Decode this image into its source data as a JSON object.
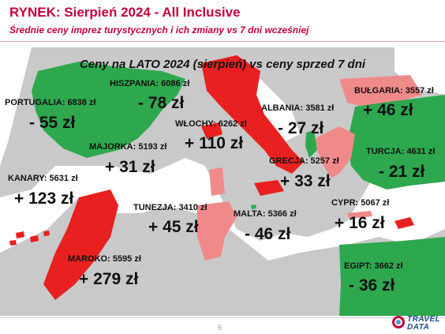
{
  "header": {
    "title": "RYNEK: Sierpień 2024 - All Inclusive",
    "subtitle": "Średnie ceny imprez turystycznych i ich zmiany vs 7 dni wcześniej"
  },
  "map": {
    "title": "Ceny na LATO 2024 (sierpień) vs ceny sprzed 7 dni",
    "colors": {
      "decrease": "#2ea84f",
      "increase": "#e8201f",
      "increase_light": "#f08a8a",
      "sea": "#ffffff",
      "land": "#c9c9c9"
    },
    "destinations": [
      {
        "id": "portugalia",
        "label": "PORTUGALIA: 6838 zł",
        "change": "- 55 zł"
      },
      {
        "id": "hiszpania",
        "label": "HISZPANIA: 6086 zł",
        "change": "- 78 zł"
      },
      {
        "id": "wlochy",
        "label": "WŁOCHY: 6262 zł",
        "change": "+ 110 zł"
      },
      {
        "id": "majorka",
        "label": "MAJORKA: 5193 zł",
        "change": "+ 31 zł"
      },
      {
        "id": "albania",
        "label": "ALBANIA: 3581 zł",
        "change": "- 27 zł"
      },
      {
        "id": "bulgaria",
        "label": "BUŁGARIA: 3557 zł",
        "change": "+ 46 zł"
      },
      {
        "id": "turcja",
        "label": "TURCJA: 4631 zł",
        "change": "- 21 zł"
      },
      {
        "id": "grecja",
        "label": "GRECJA: 5257 zł",
        "change": "+ 33 zł"
      },
      {
        "id": "kanary",
        "label": "KANARY: 5631 zł",
        "change": "+ 123 zł"
      },
      {
        "id": "tunezja",
        "label": "TUNEZJA: 3410 zł",
        "change": "+ 45 zł"
      },
      {
        "id": "malta",
        "label": "MALTA: 5366 zł",
        "change": "- 46 zł"
      },
      {
        "id": "cypr",
        "label": "CYPR: 5067 zł",
        "change": "+ 16 zł"
      },
      {
        "id": "maroko",
        "label": "MAROKO: 5595 zł",
        "change": "+ 279 zł"
      },
      {
        "id": "egipt",
        "label": "EGIPT: 3662 zł",
        "change": "- 36 zł"
      }
    ]
  },
  "footer": {
    "page_number": "5",
    "logo_line1": "TRAVEL",
    "logo_line2": "DATA"
  }
}
